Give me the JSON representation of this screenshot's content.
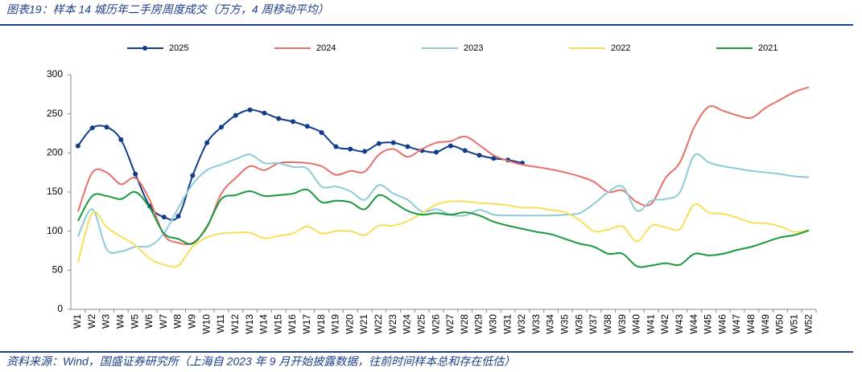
{
  "chart_data": {
    "type": "line",
    "title": "图表19：样本 14 城历年二手房周度成交（万方，4 周移动平均）",
    "source": "资料来源：Wind，国盛证券研究所（上海自 2023 年 9 月开始披露数据，往前时间样本总和存在低估）",
    "categories": [
      "W1",
      "W2",
      "W3",
      "W4",
      "W5",
      "W6",
      "W7",
      "W8",
      "W9",
      "W10",
      "W11",
      "W12",
      "W13",
      "W14",
      "W15",
      "W16",
      "W17",
      "W18",
      "W19",
      "W20",
      "W21",
      "W22",
      "W23",
      "W24",
      "W25",
      "W26",
      "W27",
      "W28",
      "W29",
      "W30",
      "W31",
      "W32",
      "W33",
      "W34",
      "W35",
      "W36",
      "W37",
      "W38",
      "W39",
      "W40",
      "W41",
      "W42",
      "W43",
      "W44",
      "W45",
      "W46",
      "W47",
      "W48",
      "W49",
      "W50",
      "W51",
      "W52"
    ],
    "ylim": [
      0,
      300
    ],
    "yticks": [
      0,
      50,
      100,
      150,
      200,
      250,
      300
    ],
    "grid": false,
    "legend": "top",
    "series": [
      {
        "name": "2025",
        "color": "#0f3d8c",
        "marker": true,
        "values": [
          209,
          232,
          233,
          217,
          173,
          132,
          118,
          119,
          171,
          213,
          233,
          248,
          255,
          251,
          244,
          240,
          234,
          226,
          208,
          205,
          202,
          212,
          213,
          208,
          203,
          201,
          209,
          203,
          197,
          193,
          191,
          187,
          null,
          null,
          null,
          null,
          null,
          null,
          null,
          null,
          null,
          null,
          null,
          null,
          null,
          null,
          null,
          null,
          null,
          null,
          null,
          null
        ]
      },
      {
        "name": "2024",
        "color": "#e8706a",
        "marker": false,
        "values": [
          125,
          175,
          175,
          160,
          168,
          140,
          95,
          85,
          85,
          105,
          148,
          168,
          183,
          178,
          187,
          188,
          187,
          183,
          172,
          177,
          176,
          198,
          205,
          195,
          205,
          213,
          215,
          221,
          210,
          197,
          190,
          185,
          182,
          179,
          175,
          170,
          163,
          150,
          152,
          137,
          135,
          168,
          188,
          233,
          259,
          254,
          248,
          245,
          258,
          268,
          278,
          284
        ]
      },
      {
        "name": "2023",
        "color": "#8ccbd8",
        "marker": false,
        "values": [
          93,
          128,
          77,
          74,
          80,
          81,
          97,
          130,
          160,
          178,
          185,
          192,
          198,
          187,
          187,
          182,
          180,
          157,
          157,
          151,
          140,
          159,
          148,
          140,
          125,
          128,
          121,
          120,
          127,
          121,
          120,
          120,
          120,
          120,
          121,
          123,
          135,
          150,
          157,
          126,
          139,
          141,
          150,
          197,
          188,
          183,
          180,
          177,
          175,
          173,
          170,
          169
        ]
      },
      {
        "name": "2022",
        "color": "#f7df5a",
        "marker": false,
        "values": [
          60,
          123,
          105,
          93,
          82,
          65,
          57,
          56,
          80,
          92,
          97,
          98,
          98,
          91,
          94,
          97,
          106,
          97,
          100,
          100,
          95,
          107,
          107,
          113,
          123,
          134,
          138,
          138,
          136,
          135,
          133,
          130,
          130,
          127,
          124,
          114,
          100,
          102,
          106,
          87,
          107,
          105,
          103,
          134,
          124,
          122,
          117,
          111,
          110,
          106,
          99,
          101
        ]
      },
      {
        "name": "2021",
        "color": "#1a9a3c",
        "marker": false,
        "values": [
          113,
          145,
          145,
          141,
          150,
          130,
          97,
          90,
          84,
          106,
          141,
          146,
          151,
          145,
          146,
          148,
          153,
          137,
          139,
          137,
          128,
          146,
          137,
          126,
          121,
          123,
          121,
          124,
          120,
          112,
          107,
          103,
          99,
          96,
          90,
          84,
          80,
          71,
          71,
          55,
          56,
          59,
          57,
          71,
          69,
          71,
          76,
          80,
          86,
          92,
          95,
          101
        ]
      }
    ]
  }
}
